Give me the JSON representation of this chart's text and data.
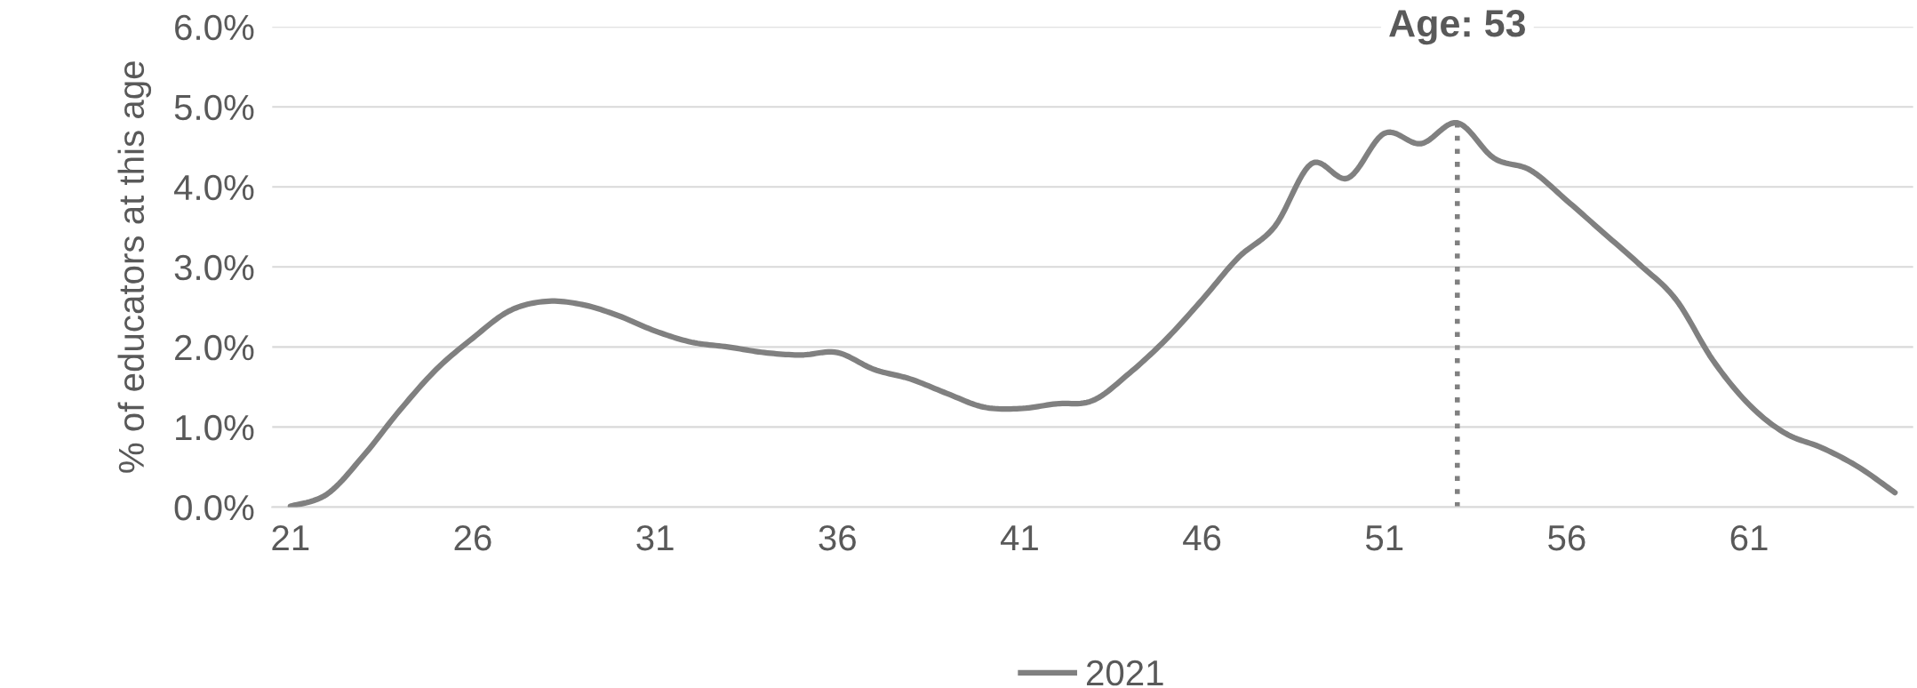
{
  "chart_data": {
    "type": "line",
    "ylabel": "% of educators at this age",
    "x": [
      21,
      22,
      23,
      24,
      25,
      26,
      27,
      28,
      29,
      30,
      31,
      32,
      33,
      34,
      35,
      36,
      37,
      38,
      39,
      40,
      41,
      42,
      43,
      44,
      45,
      46,
      47,
      48,
      49,
      50,
      51,
      52,
      53,
      54,
      55,
      56,
      57,
      58,
      59,
      60,
      61,
      62,
      63,
      64,
      65
    ],
    "series": [
      {
        "name": "2021",
        "color": "#808080",
        "values": [
          0.01,
          0.16,
          0.64,
          1.21,
          1.72,
          2.11,
          2.45,
          2.57,
          2.53,
          2.39,
          2.2,
          2.06,
          2.0,
          1.93,
          1.9,
          1.93,
          1.72,
          1.6,
          1.42,
          1.25,
          1.23,
          1.29,
          1.33,
          1.67,
          2.09,
          2.59,
          3.12,
          3.51,
          4.29,
          4.11,
          4.67,
          4.54,
          4.8,
          4.36,
          4.21,
          3.83,
          3.43,
          3.03,
          2.59,
          1.84,
          1.28,
          0.92,
          0.74,
          0.5,
          0.18
        ]
      }
    ],
    "xlim": [
      20.5,
      65.5
    ],
    "xticks": [
      21,
      26,
      31,
      36,
      41,
      46,
      51,
      56,
      61
    ],
    "ylim": [
      0,
      6
    ],
    "yticks": [
      {
        "value": 0,
        "label": "0.0%"
      },
      {
        "value": 1,
        "label": "1.0%"
      },
      {
        "value": 2,
        "label": "2.0%"
      },
      {
        "value": 3,
        "label": "3.0%"
      },
      {
        "value": 4,
        "label": "4.0%"
      },
      {
        "value": 5,
        "label": "5.0%"
      },
      {
        "value": 6,
        "label": "6.0%"
      }
    ],
    "ref_lines": [
      {
        "axis": "x",
        "value": 53,
        "label": "Age: 53",
        "color": "#808080",
        "line_style": "dotted"
      }
    ],
    "grid": "y",
    "legend": "bottom",
    "marker": "none",
    "line_style": "solid"
  }
}
